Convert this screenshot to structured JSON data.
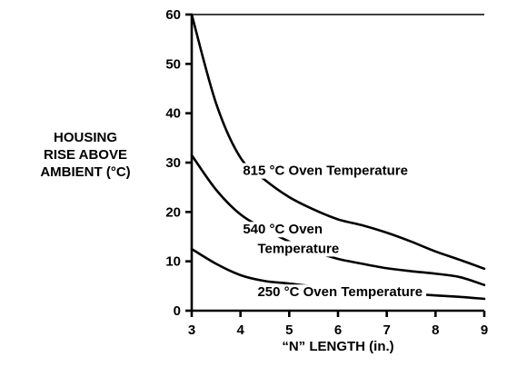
{
  "chart_data": {
    "type": "line",
    "xlabel": "“N” LENGTH (in.)",
    "ylabel_lines": [
      "HOUSING",
      "RISE ABOVE",
      "AMBIENT (°C)"
    ],
    "xlim": [
      3,
      9
    ],
    "ylim": [
      0,
      60
    ],
    "x_ticks": [
      3,
      4,
      5,
      6,
      7,
      8,
      9
    ],
    "y_ticks": [
      0,
      10,
      20,
      30,
      40,
      50,
      60
    ],
    "series": [
      {
        "name": "815 °C Oven Temperature",
        "x": [
          3,
          3.5,
          4,
          4.5,
          5,
          5.5,
          6,
          6.5,
          7,
          7.5,
          8,
          8.5,
          9
        ],
        "y": [
          60,
          42,
          31,
          26.5,
          23,
          20.5,
          18.5,
          17.3,
          15.8,
          14,
          12,
          10.3,
          8.5
        ]
      },
      {
        "name": "540 °C Oven Temperature",
        "x": [
          3,
          3.5,
          4,
          4.5,
          5,
          5.5,
          6,
          6.5,
          7,
          7.5,
          8,
          8.5,
          9
        ],
        "y": [
          31.5,
          24.5,
          19.5,
          16.5,
          14,
          12,
          10.5,
          9.5,
          8.6,
          8,
          7.5,
          6.8,
          5.2
        ]
      },
      {
        "name": "250 °C Oven Temperature",
        "x": [
          3,
          3.5,
          4,
          4.5,
          5,
          5.5,
          6,
          6.5,
          7,
          7.5,
          8,
          8.5,
          9
        ],
        "y": [
          12.5,
          9.5,
          7.2,
          6,
          5.5,
          4.9,
          4.4,
          4,
          3.7,
          3.4,
          3.1,
          2.8,
          2.4
        ]
      }
    ],
    "annotations": [
      {
        "text": "815 °C Oven Temperature",
        "x": 4.05,
        "y": 27.5
      },
      {
        "text": "540 °C Oven",
        "x": 4.05,
        "y": 15.6
      },
      {
        "text": "Temperature",
        "x": 4.35,
        "y": 11.7
      },
      {
        "text": "250 °C Oven Temperature",
        "x": 4.35,
        "y": 2.9
      }
    ]
  }
}
